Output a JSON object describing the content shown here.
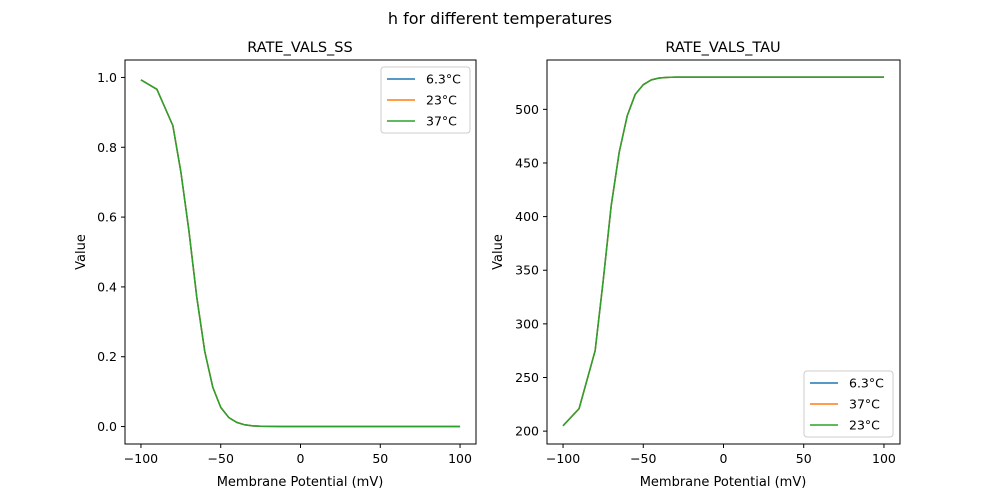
{
  "figure_title": "h for different temperatures",
  "colors": {
    "blue": "#1f77b4",
    "orange": "#ff7f0e",
    "green": "#2ca02c"
  },
  "chart_data": [
    {
      "type": "line",
      "title": "RATE_VALS_SS",
      "xlabel": "Membrane Potential (mV)",
      "ylabel": "Value",
      "xlim": [
        -110,
        110
      ],
      "ylim": [
        -0.05,
        1.05
      ],
      "xticks": [
        -100,
        -50,
        0,
        50,
        100
      ],
      "xtick_labels": [
        "−100",
        "−50",
        "0",
        "50",
        "100"
      ],
      "yticks": [
        0.0,
        0.2,
        0.4,
        0.6,
        0.8,
        1.0
      ],
      "ytick_labels": [
        "0.0",
        "0.2",
        "0.4",
        "0.6",
        "0.8",
        "1.0"
      ],
      "grid": false,
      "legend_position": "upper right",
      "series": [
        {
          "name": "6.3°C",
          "color": "#1f77b4"
        },
        {
          "name": "23°C",
          "color": "#ff7f0e"
        },
        {
          "name": "37°C",
          "color": "#2ca02c"
        }
      ],
      "x": [
        -100,
        -90,
        -80,
        -75,
        -70,
        -65,
        -60,
        -55,
        -50,
        -45,
        -40,
        -35,
        -30,
        -25,
        -20,
        -10,
        0,
        25,
        50,
        75,
        100
      ],
      "y": [
        0.993,
        0.966,
        0.862,
        0.73,
        0.563,
        0.37,
        0.215,
        0.113,
        0.055,
        0.026,
        0.012,
        0.005,
        0.002,
        0.001,
        0.0005,
        0.0001,
        0.0,
        0.0,
        0.0,
        0.0,
        0.0
      ]
    },
    {
      "type": "line",
      "title": "RATE_VALS_TAU",
      "xlabel": "Membrane Potential (mV)",
      "ylabel": "Value",
      "xlim": [
        -110,
        110
      ],
      "ylim": [
        188,
        546
      ],
      "xticks": [
        -100,
        -50,
        0,
        50,
        100
      ],
      "xtick_labels": [
        "−100",
        "−50",
        "0",
        "50",
        "100"
      ],
      "yticks": [
        200,
        250,
        300,
        350,
        400,
        450,
        500
      ],
      "ytick_labels": [
        "200",
        "250",
        "300",
        "350",
        "400",
        "450",
        "500"
      ],
      "grid": false,
      "legend_position": "lower right",
      "series": [
        {
          "name": "6.3°C",
          "color": "#1f77b4"
        },
        {
          "name": "37°C",
          "color": "#ff7f0e"
        },
        {
          "name": "23°C",
          "color": "#2ca02c"
        }
      ],
      "x": [
        -100,
        -90,
        -80,
        -75,
        -70,
        -65,
        -60,
        -55,
        -50,
        -45,
        -40,
        -35,
        -30,
        -20,
        -10,
        0,
        50,
        100
      ],
      "y": [
        205,
        221,
        275,
        340,
        410,
        460,
        494,
        514,
        523,
        527.5,
        529.2,
        529.8,
        530,
        530,
        530,
        530,
        530,
        530
      ]
    }
  ]
}
